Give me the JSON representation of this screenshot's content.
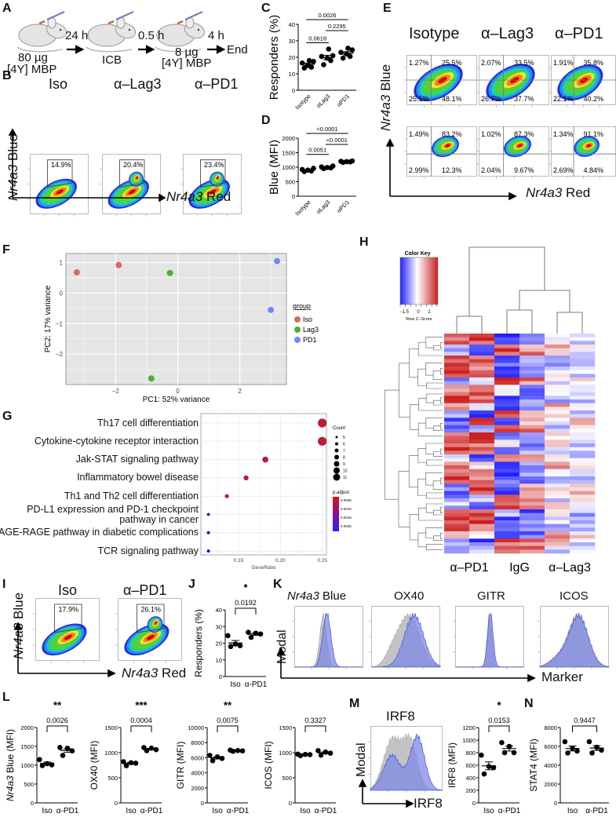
{
  "panels": {
    "A": "A",
    "B": "B",
    "C": "C",
    "D": "D",
    "E": "E",
    "F": "F",
    "G": "G",
    "H": "H",
    "I": "I",
    "J": "J",
    "K": "K",
    "L": "L",
    "M": "M",
    "N": "N"
  },
  "panel_a": {
    "dose1": "80 µg",
    "antigen1": "[4Y] MBP",
    "step1": "24 h",
    "treatment": "ICB",
    "step2": "0.5 h",
    "dose2": "8 µg",
    "antigen2": "[4Y] MBP",
    "step3": "4 h",
    "end": "End"
  },
  "panel_b": {
    "titles": [
      "Iso",
      "α–Lag3",
      "α–PD1"
    ],
    "gates": [
      "14.9%",
      "20.4%",
      "23.4%"
    ],
    "ylabel_gene": "Nr4a3",
    "ylabel_rest": " Blue",
    "xlabel_gene": "Nr4a3",
    "xlabel_rest": " Red"
  },
  "panel_e": {
    "titles": [
      "Isotype",
      "α–Lag3",
      "α–PD1"
    ],
    "row1": [
      [
        "1.27%",
        "25.5%",
        "25.1%",
        "48.1%"
      ],
      [
        "2.07%",
        "33.5%",
        "26.7%",
        "37.7%"
      ],
      [
        "1.91%",
        "35.8%",
        "22.1%",
        "40.2%"
      ]
    ],
    "row2": [
      [
        "1.49%",
        "83.2%",
        "2.99%",
        "12.3%"
      ],
      [
        "1.02%",
        "87.3%",
        "2.04%",
        "9.67%"
      ],
      [
        "1.34%",
        "91.1%",
        "2.69%",
        "4.84%"
      ]
    ],
    "ylabel_gene": "Nr4a3",
    "ylabel_rest": " Blue",
    "xlabel_gene": "Nr4a3",
    "xlabel_rest": " Red"
  },
  "panel_i": {
    "titles": [
      "Iso",
      "α–PD1"
    ],
    "gates": [
      "17.9%",
      "26.1%"
    ],
    "ylabel_gene": "Nr4a3",
    "ylabel_rest": " Blue",
    "xlabel_gene": "Nr4a3",
    "xlabel_rest": " Red"
  },
  "panel_k": {
    "titles_gene": "Nr4a3",
    "titles": [
      " Blue",
      "OX40",
      "GITR",
      "ICOS"
    ],
    "ylabel": "Modal",
    "xlabel": "Marker"
  },
  "panel_m": {
    "hist_title": "IRF8",
    "ylabel": "Modal",
    "xlabel": "IRF8"
  },
  "colors": {
    "iso": "#d46a5f",
    "lag3": "#4fae2f",
    "pd1": "#6b8cff",
    "hist_gray": "#b9b9b9",
    "hist_blue": "#7d88e6"
  },
  "chart_data": [
    {
      "id": "C",
      "type": "scatter",
      "ylabel": "Responders (%)",
      "ylim": [
        0,
        40
      ],
      "yticks": [
        0,
        10,
        20,
        30,
        40
      ],
      "label_style": "rotated",
      "groups": [
        {
          "label": "Isotype",
          "values": [
            13.5,
            14,
            15,
            16.5,
            17.5,
            18
          ]
        },
        {
          "label": "αLag3",
          "values": [
            15.5,
            18,
            19.5,
            20.5,
            21,
            25
          ]
        },
        {
          "label": "αPD1",
          "values": [
            19.5,
            20.5,
            22,
            23,
            24.5,
            25.5
          ]
        }
      ],
      "comparisons": [
        {
          "a": 0,
          "b": 1,
          "p": "0.0618",
          "level": 0
        },
        {
          "a": 1,
          "b": 2,
          "p": "0.2295",
          "level": 1
        },
        {
          "a": 0,
          "b": 2,
          "p": "0.0026",
          "level": 2
        }
      ]
    },
    {
      "id": "D",
      "type": "scatter",
      "ylabel": "Blue (MFI)",
      "ylim": [
        0,
        2000
      ],
      "yticks": [
        0,
        500,
        1000,
        1500,
        2000
      ],
      "label_style": "rotated",
      "groups": [
        {
          "label": "Isotype",
          "values": [
            850,
            870,
            900,
            920,
            960
          ]
        },
        {
          "label": "αLag3",
          "values": [
            950,
            975,
            990,
            1010,
            1040
          ]
        },
        {
          "label": "αPD1",
          "values": [
            1165,
            1180,
            1190,
            1200,
            1215
          ]
        }
      ],
      "comparisons": [
        {
          "a": 0,
          "b": 1,
          "p": "0.0051",
          "level": 0
        },
        {
          "a": 1,
          "b": 2,
          "p": "<0.0001",
          "level": 1
        },
        {
          "a": 0,
          "b": 2,
          "p": "<0.0001",
          "level": 2
        }
      ]
    },
    {
      "id": "F",
      "type": "scatter",
      "xlabel": "PC1: 52% variance",
      "ylabel": "PC2: 17% variance",
      "xlim": [
        -3.6,
        3.5
      ],
      "ylim": [
        -3.0,
        1.3
      ],
      "xticks": [
        -2,
        0,
        2
      ],
      "yticks": [
        -2,
        -1,
        0,
        1
      ],
      "grid": true,
      "legend_title": "group",
      "legend_position": "right",
      "series": [
        {
          "name": "Iso",
          "points": [
            [
              -3.25,
              0.68
            ],
            [
              -1.9,
              0.92
            ]
          ]
        },
        {
          "name": "Lag3",
          "points": [
            [
              -0.25,
              0.66
            ],
            [
              -0.85,
              -2.8
            ]
          ]
        },
        {
          "name": "PD1",
          "points": [
            [
              3.2,
              1.05
            ],
            [
              3.0,
              -0.55
            ]
          ]
        }
      ]
    },
    {
      "id": "G",
      "type": "scatter",
      "xlabel": "GeneRatio",
      "xlim": [
        0.105,
        0.255
      ],
      "xticks": [
        0.15,
        0.2,
        0.25
      ],
      "grid": true,
      "size_legend_title": "Count",
      "size_legend": [
        5,
        6,
        7,
        8,
        9,
        10,
        11
      ],
      "color_legend_title": "p.adjust",
      "color_legend": [
        "0.0005",
        "0.0010",
        "0.0015",
        "0.0020"
      ],
      "terms": [
        {
          "term": "Th17 cell differentiation",
          "gene_ratio": 0.25,
          "count": 11,
          "p_adjust": 0.0002
        },
        {
          "term": "Cytokine-cytokine receptor interaction",
          "gene_ratio": 0.25,
          "count": 11,
          "p_adjust": 0.0002
        },
        {
          "term": "Jak-STAT signaling pathway",
          "gene_ratio": 0.182,
          "count": 8,
          "p_adjust": 0.0003
        },
        {
          "term": "Inflammatory bowel disease",
          "gene_ratio": 0.159,
          "count": 7,
          "p_adjust": 0.0003
        },
        {
          "term": "Th1 and Th2 cell differentiation",
          "gene_ratio": 0.136,
          "count": 6,
          "p_adjust": 0.0004
        },
        {
          "term": "PD-L1 expression and PD-1 checkpoint\npathway in cancer",
          "gene_ratio": 0.114,
          "count": 5,
          "p_adjust": 0.0013
        },
        {
          "term": "AGE-RAGE pathway in diabetic complications",
          "gene_ratio": 0.114,
          "count": 5,
          "p_adjust": 0.0022
        },
        {
          "term": "TCR signaling pathway",
          "gene_ratio": 0.114,
          "count": 5,
          "p_adjust": 0.0022
        }
      ]
    },
    {
      "id": "H",
      "type": "heatmap",
      "color_key_title": "Color Key",
      "color_key_label": "Row Z−Score",
      "color_key_ticks": [
        "−1.5",
        "0",
        "1"
      ],
      "column_groups": [
        "α–PD1",
        "IgG",
        "α–Lag3"
      ],
      "rows": 60
    },
    {
      "id": "J",
      "type": "scatter",
      "ylabel": "Responders (%)",
      "ylim": [
        0,
        40
      ],
      "yticks": [
        0,
        10,
        20,
        30,
        40
      ],
      "stars": "*",
      "label_style": "flat",
      "groups": [
        {
          "label": "Iso",
          "values": [
            18,
            18.5,
            19.5,
            24.5
          ]
        },
        {
          "label": "α-PD1",
          "values": [
            23.5,
            25.5,
            26,
            26.5
          ]
        }
      ],
      "comparisons": [
        {
          "a": 0,
          "b": 1,
          "p": "0.0192",
          "level": 0
        }
      ]
    },
    {
      "id": "L1",
      "type": "scatter",
      "ylabel_gene": "Nr4a3",
      "ylabel": " Blue (MFI)",
      "ylim": [
        0,
        2000
      ],
      "yticks": [
        0,
        500,
        1000,
        1500,
        2000
      ],
      "stars": "**",
      "label_style": "flat",
      "groups": [
        {
          "label": "Iso",
          "values": [
            990,
            1010,
            1040,
            1150
          ]
        },
        {
          "label": "α-PD1",
          "values": [
            1260,
            1380,
            1450,
            1470
          ]
        }
      ],
      "comparisons": [
        {
          "a": 0,
          "b": 1,
          "p": "0.0026",
          "level": 0
        }
      ]
    },
    {
      "id": "L2",
      "type": "scatter",
      "ylabel": "OX40 (MFI)",
      "ylim": [
        0,
        1500
      ],
      "yticks": [
        0,
        500,
        1000,
        1500
      ],
      "stars": "***",
      "label_style": "flat",
      "groups": [
        {
          "label": "Iso",
          "values": [
            740,
            790,
            800,
            820
          ]
        },
        {
          "label": "α-PD1",
          "values": [
            1040,
            1060,
            1090,
            1100
          ]
        }
      ],
      "comparisons": [
        {
          "a": 0,
          "b": 1,
          "p": "0.0004",
          "level": 0
        }
      ]
    },
    {
      "id": "L3",
      "type": "scatter",
      "ylabel": "GITR (MFI)",
      "ylim": [
        0,
        10000
      ],
      "yticks": [
        0,
        2000,
        4000,
        6000,
        8000,
        10000
      ],
      "stars": "**",
      "label_style": "flat",
      "groups": [
        {
          "label": "Iso",
          "values": [
            5600,
            5900,
            6100,
            6300
          ]
        },
        {
          "label": "α-PD1",
          "values": [
            6850,
            6900,
            6950,
            7000
          ]
        }
      ],
      "comparisons": [
        {
          "a": 0,
          "b": 1,
          "p": "0.0075",
          "level": 0
        }
      ]
    },
    {
      "id": "L4",
      "type": "scatter",
      "ylabel": "ICOS (MFI)",
      "ylim": [
        0,
        1500
      ],
      "yticks": [
        0,
        500,
        1000,
        1500
      ],
      "stars": "",
      "label_style": "flat",
      "groups": [
        {
          "label": "Iso",
          "values": [
            940,
            960,
            965,
            970
          ]
        },
        {
          "label": "α-PD1",
          "values": [
            950,
            990,
            1010,
            1040
          ]
        }
      ],
      "comparisons": [
        {
          "a": 0,
          "b": 1,
          "p": "0.3327",
          "level": 0
        }
      ]
    },
    {
      "id": "M",
      "type": "scatter",
      "ylabel": "IRF8 (MFI)",
      "ylim": [
        0,
        1200
      ],
      "yticks": [
        0,
        200,
        400,
        600,
        800,
        1000,
        1200
      ],
      "stars": "*",
      "label_style": "flat",
      "groups": [
        {
          "label": "Iso",
          "values": [
            460,
            560,
            580,
            760
          ]
        },
        {
          "label": "α-PD1",
          "values": [
            800,
            800,
            900,
            960
          ]
        }
      ],
      "comparisons": [
        {
          "a": 0,
          "b": 1,
          "p": "0.0153",
          "level": 0
        }
      ]
    },
    {
      "id": "N",
      "type": "scatter",
      "ylabel": "STAT4 (MFI)",
      "ylim": [
        0,
        8000
      ],
      "yticks": [
        0,
        2000,
        4000,
        6000,
        8000
      ],
      "stars": "",
      "label_style": "flat",
      "groups": [
        {
          "label": "Iso",
          "values": [
            5300,
            5500,
            5800,
            6500
          ]
        },
        {
          "label": "α-PD1",
          "values": [
            5300,
            5600,
            5900,
            6500
          ]
        }
      ],
      "comparisons": [
        {
          "a": 0,
          "b": 1,
          "p": "0.9447",
          "level": 0
        }
      ]
    }
  ]
}
